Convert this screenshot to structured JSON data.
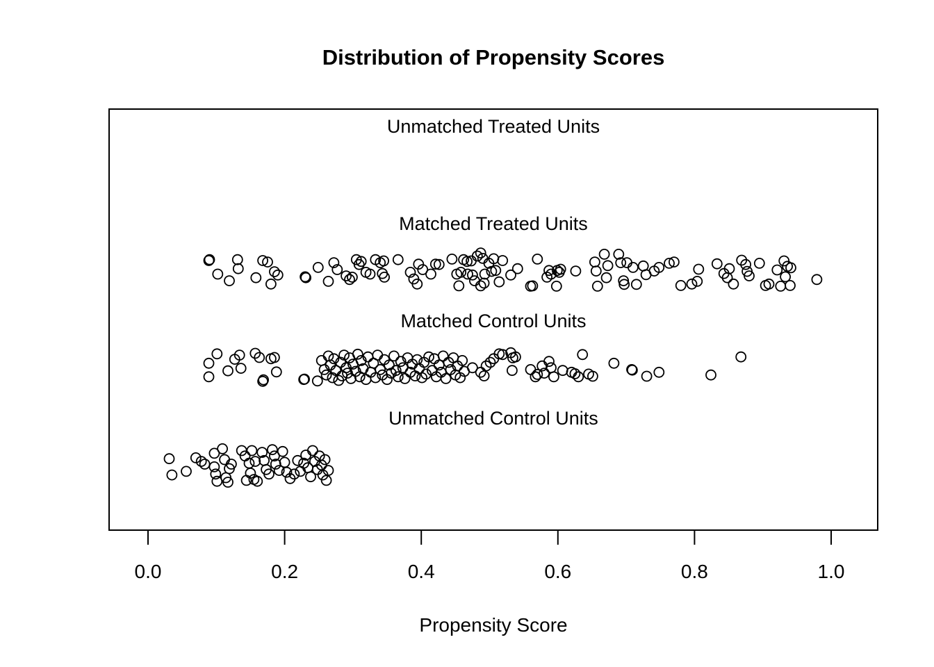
{
  "title": "Distribution of Propensity Scores",
  "xlabel": "Propensity Score",
  "colors": {
    "background": "#ffffff",
    "stroke": "#000000"
  },
  "chart_data": {
    "type": "scatter",
    "variant": "jitter-stripchart",
    "title": "Distribution of Propensity Scores",
    "xlabel": "Propensity Score",
    "xlim": [
      -0.05,
      1.07
    ],
    "x_ticks": [
      0.0,
      0.2,
      0.4,
      0.6,
      0.8,
      1.0
    ],
    "grid": false,
    "legend": "none",
    "point_style": "open-circle",
    "groups": [
      {
        "label": "Unmatched Treated Units",
        "points": []
      },
      {
        "label": "Matched Treated Units",
        "points": [
          [
            0.09,
            -0.55
          ],
          [
            0.089,
            -0.5
          ],
          [
            0.102,
            0.25
          ],
          [
            0.119,
            0.62
          ],
          [
            0.131,
            -0.55
          ],
          [
            0.132,
            -0.05
          ],
          [
            0.158,
            0.45
          ],
          [
            0.168,
            -0.5
          ],
          [
            0.175,
            -0.42
          ],
          [
            0.18,
            0.8
          ],
          [
            0.185,
            0.12
          ],
          [
            0.19,
            0.3
          ],
          [
            0.23,
            0.4
          ],
          [
            0.231,
            0.45
          ],
          [
            0.249,
            -0.12
          ],
          [
            0.264,
            0.65
          ],
          [
            0.272,
            -0.38
          ],
          [
            0.277,
            0.0
          ],
          [
            0.29,
            0.35
          ],
          [
            0.295,
            0.55
          ],
          [
            0.299,
            0.42
          ],
          [
            0.305,
            -0.55
          ],
          [
            0.309,
            -0.28
          ],
          [
            0.312,
            -0.45
          ],
          [
            0.319,
            0.15
          ],
          [
            0.325,
            0.25
          ],
          [
            0.333,
            -0.55
          ],
          [
            0.34,
            -0.38
          ],
          [
            0.343,
            0.22
          ],
          [
            0.345,
            -0.48
          ],
          [
            0.346,
            0.42
          ],
          [
            0.366,
            -0.55
          ],
          [
            0.384,
            0.15
          ],
          [
            0.389,
            0.52
          ],
          [
            0.394,
            0.8
          ],
          [
            0.396,
            -0.3
          ],
          [
            0.402,
            0.0
          ],
          [
            0.414,
            0.25
          ],
          [
            0.421,
            -0.3
          ],
          [
            0.426,
            -0.28
          ],
          [
            0.445,
            -0.58
          ],
          [
            0.452,
            0.25
          ],
          [
            0.455,
            0.9
          ],
          [
            0.458,
            0.15
          ],
          [
            0.462,
            -0.55
          ],
          [
            0.467,
            -0.45
          ],
          [
            0.468,
            0.25
          ],
          [
            0.473,
            -0.48
          ],
          [
            0.475,
            0.3
          ],
          [
            0.478,
            0.62
          ],
          [
            0.482,
            -0.75
          ],
          [
            0.487,
            -0.92
          ],
          [
            0.487,
            0.9
          ],
          [
            0.49,
            -0.62
          ],
          [
            0.492,
            0.75
          ],
          [
            0.493,
            0.25
          ],
          [
            0.499,
            -0.35
          ],
          [
            0.503,
            0.1
          ],
          [
            0.506,
            -0.6
          ],
          [
            0.509,
            0.05
          ],
          [
            0.514,
            0.68
          ],
          [
            0.519,
            -0.5
          ],
          [
            0.531,
            0.3
          ],
          [
            0.541,
            -0.05
          ],
          [
            0.56,
            0.92
          ],
          [
            0.563,
            0.9
          ],
          [
            0.57,
            -0.58
          ],
          [
            0.584,
            0.42
          ],
          [
            0.587,
            0.05
          ],
          [
            0.59,
            0.25
          ],
          [
            0.598,
            0.92
          ],
          [
            0.599,
            0.05
          ],
          [
            0.602,
            0.15
          ],
          [
            0.604,
            -0.02
          ],
          [
            0.626,
            0.08
          ],
          [
            0.654,
            -0.42
          ],
          [
            0.656,
            0.08
          ],
          [
            0.658,
            0.92
          ],
          [
            0.668,
            -0.85
          ],
          [
            0.671,
            0.45
          ],
          [
            0.673,
            -0.22
          ],
          [
            0.689,
            -0.85
          ],
          [
            0.692,
            -0.38
          ],
          [
            0.696,
            0.62
          ],
          [
            0.697,
            0.82
          ],
          [
            0.701,
            -0.38
          ],
          [
            0.71,
            -0.12
          ],
          [
            0.715,
            0.82
          ],
          [
            0.725,
            -0.2
          ],
          [
            0.729,
            0.28
          ],
          [
            0.741,
            0.08
          ],
          [
            0.748,
            -0.12
          ],
          [
            0.763,
            -0.35
          ],
          [
            0.77,
            -0.42
          ],
          [
            0.78,
            0.88
          ],
          [
            0.796,
            0.8
          ],
          [
            0.804,
            0.65
          ],
          [
            0.806,
            -0.02
          ],
          [
            0.833,
            -0.32
          ],
          [
            0.843,
            0.22
          ],
          [
            0.848,
            0.45
          ],
          [
            0.851,
            -0.05
          ],
          [
            0.857,
            0.8
          ],
          [
            0.869,
            -0.52
          ],
          [
            0.875,
            -0.28
          ],
          [
            0.877,
            0.1
          ],
          [
            0.88,
            0.35
          ],
          [
            0.895,
            -0.35
          ],
          [
            0.904,
            0.88
          ],
          [
            0.909,
            0.8
          ],
          [
            0.921,
            0.02
          ],
          [
            0.926,
            0.92
          ],
          [
            0.931,
            -0.48
          ],
          [
            0.933,
            0.4
          ],
          [
            0.936,
            -0.18
          ],
          [
            0.94,
            0.88
          ],
          [
            0.941,
            -0.1
          ],
          [
            0.979,
            0.55
          ]
        ]
      },
      {
        "label": "Matched Control Units",
        "points": [
          [
            0.089,
            -0.2
          ],
          [
            0.089,
            0.55
          ],
          [
            0.101,
            -0.72
          ],
          [
            0.117,
            0.22
          ],
          [
            0.127,
            -0.42
          ],
          [
            0.134,
            -0.65
          ],
          [
            0.136,
            0.08
          ],
          [
            0.157,
            -0.75
          ],
          [
            0.163,
            -0.52
          ],
          [
            0.168,
            0.8
          ],
          [
            0.169,
            0.72
          ],
          [
            0.18,
            -0.45
          ],
          [
            0.185,
            -0.52
          ],
          [
            0.188,
            0.28
          ],
          [
            0.228,
            0.7
          ],
          [
            0.229,
            0.68
          ],
          [
            0.248,
            0.78
          ],
          [
            0.254,
            -0.35
          ],
          [
            0.258,
            0.15
          ],
          [
            0.261,
            0.45
          ],
          [
            0.264,
            -0.6
          ],
          [
            0.267,
            -0.1
          ],
          [
            0.27,
            0.6
          ],
          [
            0.272,
            -0.45
          ],
          [
            0.275,
            0.2
          ],
          [
            0.279,
            0.75
          ],
          [
            0.282,
            -0.25
          ],
          [
            0.284,
            0.5
          ],
          [
            0.287,
            -0.65
          ],
          [
            0.29,
            0.05
          ],
          [
            0.292,
            0.35
          ],
          [
            0.295,
            -0.5
          ],
          [
            0.297,
            0.65
          ],
          [
            0.3,
            -0.15
          ],
          [
            0.304,
            0.25
          ],
          [
            0.307,
            -0.7
          ],
          [
            0.31,
            0.55
          ],
          [
            0.312,
            -0.35
          ],
          [
            0.315,
            0.1
          ],
          [
            0.319,
            0.7
          ],
          [
            0.322,
            -0.55
          ],
          [
            0.326,
            0.3
          ],
          [
            0.33,
            -0.2
          ],
          [
            0.333,
            0.6
          ],
          [
            0.336,
            -0.65
          ],
          [
            0.34,
            0.15
          ],
          [
            0.343,
            0.45
          ],
          [
            0.346,
            -0.4
          ],
          [
            0.35,
            0.7
          ],
          [
            0.353,
            -0.1
          ],
          [
            0.356,
            0.35
          ],
          [
            0.36,
            -0.6
          ],
          [
            0.363,
            0.2
          ],
          [
            0.366,
            0.55
          ],
          [
            0.37,
            -0.3
          ],
          [
            0.373,
            0.05
          ],
          [
            0.376,
            0.65
          ],
          [
            0.38,
            -0.5
          ],
          [
            0.384,
            0.3
          ],
          [
            0.387,
            -0.15
          ],
          [
            0.391,
            0.5
          ],
          [
            0.394,
            -0.4
          ],
          [
            0.397,
            0.1
          ],
          [
            0.401,
            0.6
          ],
          [
            0.404,
            -0.25
          ],
          [
            0.407,
            0.4
          ],
          [
            0.411,
            -0.55
          ],
          [
            0.416,
            0.2
          ],
          [
            0.419,
            -0.45
          ],
          [
            0.422,
            0.55
          ],
          [
            0.426,
            -0.1
          ],
          [
            0.429,
            0.3
          ],
          [
            0.432,
            -0.6
          ],
          [
            0.436,
            0.65
          ],
          [
            0.44,
            -0.25
          ],
          [
            0.443,
            0.15
          ],
          [
            0.447,
            -0.5
          ],
          [
            0.45,
            0.45
          ],
          [
            0.453,
            -0.05
          ],
          [
            0.457,
            0.6
          ],
          [
            0.46,
            -0.35
          ],
          [
            0.463,
            0.25
          ],
          [
            0.475,
            0.05
          ],
          [
            0.487,
            0.3
          ],
          [
            0.492,
            0.5
          ],
          [
            0.495,
            -0.05
          ],
          [
            0.501,
            -0.25
          ],
          [
            0.506,
            -0.45
          ],
          [
            0.514,
            -0.72
          ],
          [
            0.519,
            -0.68
          ],
          [
            0.531,
            -0.78
          ],
          [
            0.533,
            0.2
          ],
          [
            0.534,
            -0.5
          ],
          [
            0.538,
            -0.55
          ],
          [
            0.56,
            0.15
          ],
          [
            0.567,
            0.55
          ],
          [
            0.57,
            0.42
          ],
          [
            0.577,
            -0.05
          ],
          [
            0.58,
            0.35
          ],
          [
            0.587,
            -0.3
          ],
          [
            0.59,
            0.05
          ],
          [
            0.594,
            0.55
          ],
          [
            0.607,
            0.2
          ],
          [
            0.62,
            0.3
          ],
          [
            0.625,
            0.38
          ],
          [
            0.63,
            0.55
          ],
          [
            0.636,
            -0.68
          ],
          [
            0.645,
            0.4
          ],
          [
            0.651,
            0.52
          ],
          [
            0.682,
            -0.2
          ],
          [
            0.708,
            0.15
          ],
          [
            0.709,
            0.18
          ],
          [
            0.73,
            0.52
          ],
          [
            0.748,
            0.3
          ],
          [
            0.824,
            0.45
          ],
          [
            0.868,
            -0.55
          ]
        ]
      },
      {
        "label": "Unmatched Control Units",
        "points": [
          [
            0.031,
            -0.3
          ],
          [
            0.035,
            0.6
          ],
          [
            0.056,
            0.4
          ],
          [
            0.07,
            -0.35
          ],
          [
            0.078,
            -0.15
          ],
          [
            0.083,
            0.0
          ],
          [
            0.097,
            -0.6
          ],
          [
            0.097,
            0.15
          ],
          [
            0.099,
            0.55
          ],
          [
            0.101,
            0.95
          ],
          [
            0.109,
            -0.85
          ],
          [
            0.112,
            -0.25
          ],
          [
            0.114,
            0.75
          ],
          [
            0.117,
            1.0
          ],
          [
            0.119,
            0.25
          ],
          [
            0.122,
            0.0
          ],
          [
            0.137,
            -0.75
          ],
          [
            0.142,
            -0.45
          ],
          [
            0.144,
            0.9
          ],
          [
            0.148,
            -0.05
          ],
          [
            0.15,
            0.5
          ],
          [
            0.152,
            -0.75
          ],
          [
            0.155,
            0.85
          ],
          [
            0.157,
            -0.15
          ],
          [
            0.16,
            0.95
          ],
          [
            0.167,
            -0.65
          ],
          [
            0.17,
            -0.2
          ],
          [
            0.173,
            0.3
          ],
          [
            0.177,
            0.55
          ],
          [
            0.182,
            -0.8
          ],
          [
            0.185,
            -0.45
          ],
          [
            0.187,
            0.0
          ],
          [
            0.192,
            0.35
          ],
          [
            0.197,
            -0.7
          ],
          [
            0.2,
            -0.1
          ],
          [
            0.203,
            0.45
          ],
          [
            0.208,
            0.8
          ],
          [
            0.214,
            0.55
          ],
          [
            0.219,
            -0.2
          ],
          [
            0.223,
            0.4
          ],
          [
            0.228,
            -0.05
          ],
          [
            0.231,
            -0.5
          ],
          [
            0.234,
            0.2
          ],
          [
            0.238,
            0.7
          ],
          [
            0.241,
            -0.75
          ],
          [
            0.244,
            -0.15
          ],
          [
            0.248,
            0.3
          ],
          [
            0.251,
            -0.45
          ],
          [
            0.254,
            0.05
          ],
          [
            0.256,
            0.6
          ],
          [
            0.259,
            -0.25
          ],
          [
            0.261,
            0.9
          ],
          [
            0.264,
            0.35
          ]
        ]
      }
    ]
  }
}
